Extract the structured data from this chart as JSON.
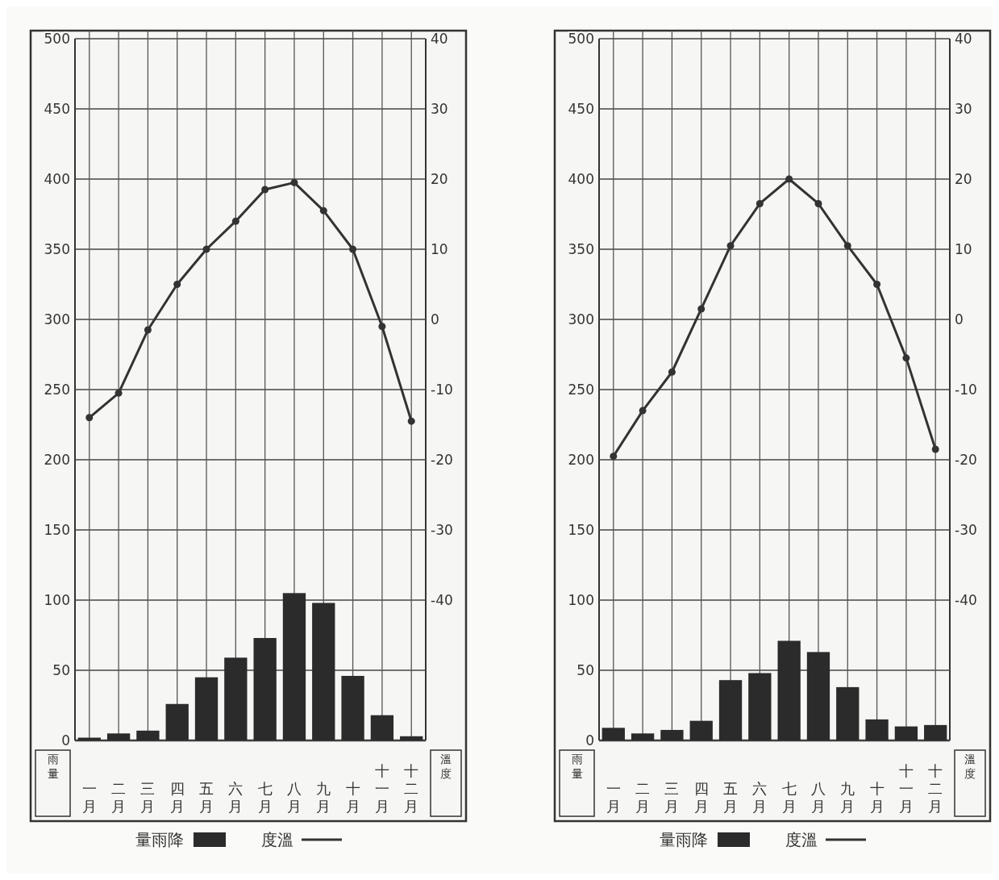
{
  "chart_data": [
    {
      "type": "bar",
      "categories": [
        "一月",
        "二月",
        "三月",
        "四月",
        "五月",
        "六月",
        "七月",
        "八月",
        "九月",
        "十月",
        "十一月",
        "十二月"
      ],
      "ylabel": "雨量",
      "y2label": "溫度",
      "series": [
        {
          "name": "量雨降",
          "color": "#2b2b2b",
          "values": [
            2,
            5,
            7,
            26,
            45,
            59,
            73,
            105,
            98,
            46,
            18,
            3
          ]
        },
        {
          "type": "line",
          "name": "度溫",
          "axis": "y2",
          "color": "#333333",
          "values": [
            -14,
            -10.5,
            -1.5,
            5,
            10,
            14,
            18.5,
            19.5,
            15.5,
            10,
            -1,
            -14.5
          ]
        }
      ],
      "ylim": [
        0,
        500
      ],
      "yticks": [
        0,
        50,
        100,
        150,
        200,
        250,
        300,
        350,
        400,
        450,
        500
      ],
      "y2lim": [
        -60,
        40
      ],
      "y2ticks": [
        -40,
        -30,
        -20,
        -10,
        0,
        10,
        20,
        30,
        40
      ],
      "grid": true,
      "legend": "bottom",
      "marker": "circle",
      "line_style": "solid"
    },
    {
      "type": "bar",
      "categories": [
        "一月",
        "二月",
        "三月",
        "四月",
        "五月",
        "六月",
        "七月",
        "八月",
        "九月",
        "十月",
        "十一月",
        "十二月"
      ],
      "ylabel": "雨量",
      "y2label": "溫度",
      "series": [
        {
          "name": "量雨降",
          "color": "#2b2b2b",
          "values": [
            9,
            5,
            7.5,
            14,
            43,
            48,
            71,
            63,
            38,
            15,
            10,
            11
          ]
        },
        {
          "type": "line",
          "name": "度溫",
          "axis": "y2",
          "color": "#333333",
          "values": [
            -19.5,
            -13,
            -7.5,
            1.5,
            10.5,
            16.5,
            20,
            16.5,
            10.5,
            5,
            -5.5,
            -18.5
          ]
        }
      ],
      "ylim": [
        0,
        500
      ],
      "yticks": [
        0,
        50,
        100,
        150,
        200,
        250,
        300,
        350,
        400,
        450,
        500
      ],
      "y2lim": [
        -60,
        40
      ],
      "y2ticks": [
        -40,
        -30,
        -20,
        -10,
        0,
        10,
        20,
        30,
        40
      ],
      "grid": true,
      "legend": "bottom",
      "marker": "circle",
      "line_style": "solid"
    }
  ]
}
